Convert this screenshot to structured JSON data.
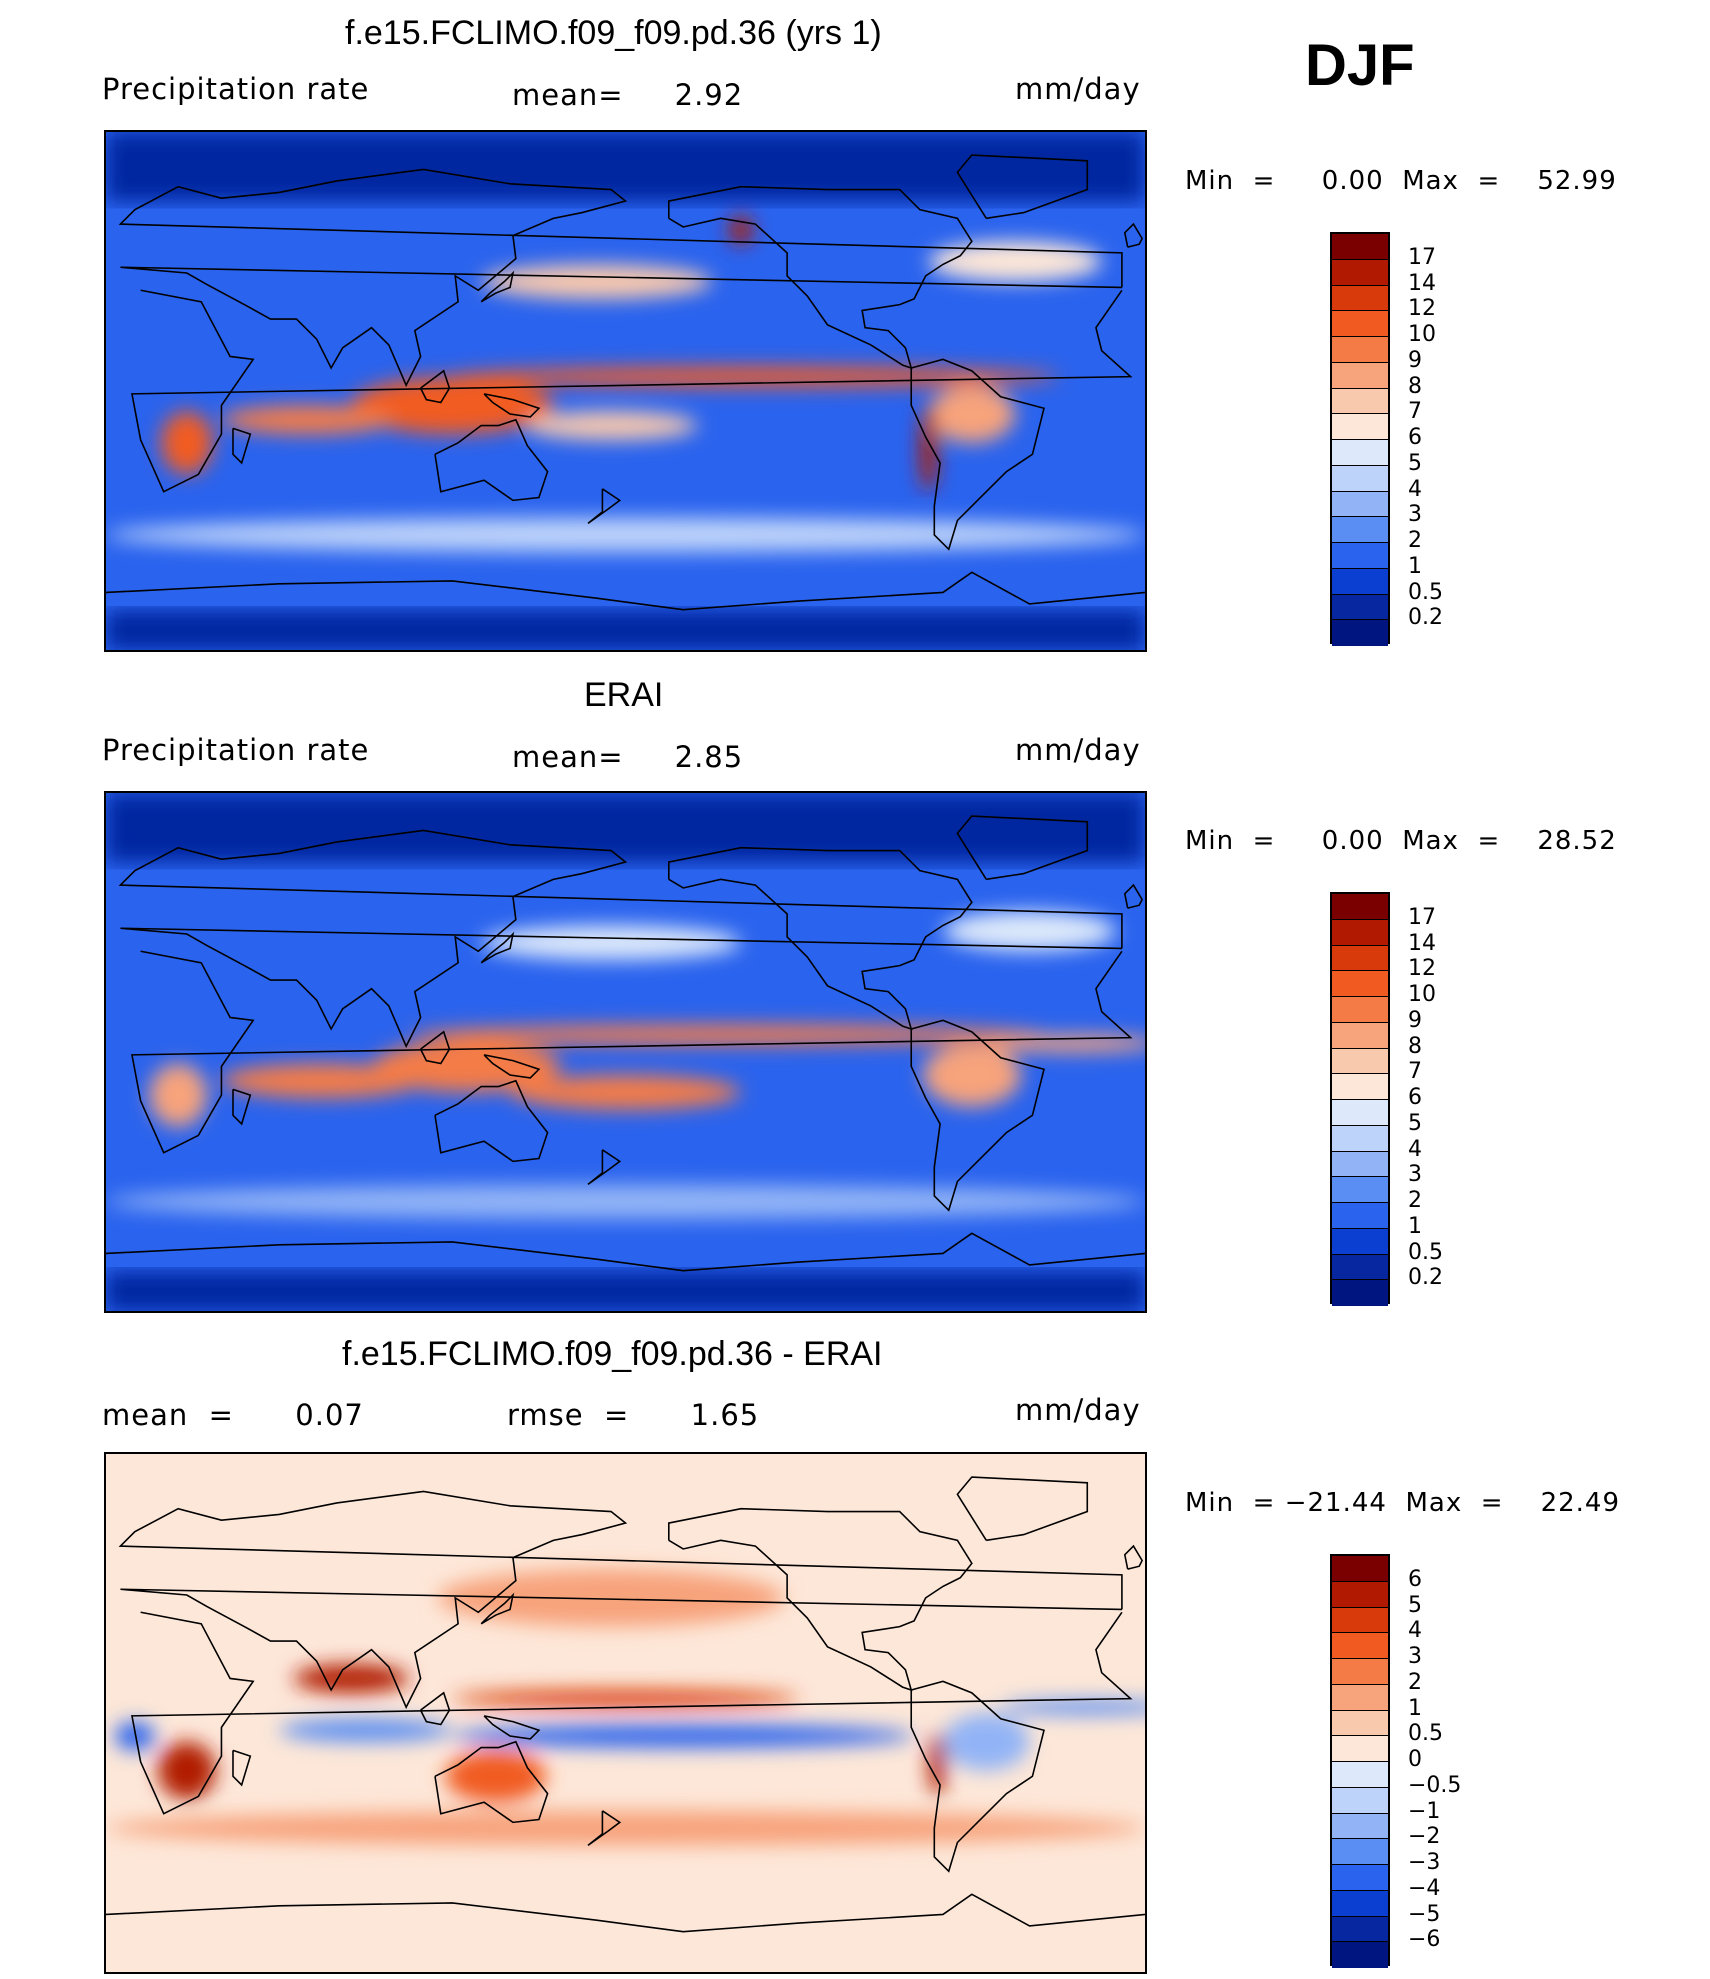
{
  "season": "DJF",
  "chart_data": [
    {
      "type": "heatmap",
      "title": "f.e15.FCLIMO.f09_f09.pd.36 (yrs 1)",
      "left_label": "Precipitation  rate",
      "center_label": "mean=     2.92",
      "units": "mm/day",
      "min_max": "Min  =     0.00  Max  =    52.99",
      "x_range": [
        0,
        360
      ],
      "y_range": [
        -90,
        90
      ],
      "levels": [
        "17",
        "14",
        "12",
        "10",
        "9",
        "8",
        "7",
        "6",
        "5",
        "4",
        "3",
        "2",
        "1",
        "0.5",
        "0.2"
      ],
      "colors": [
        "#7a0000",
        "#b11a00",
        "#d93a0c",
        "#f15b22",
        "#f47b46",
        "#f7a37c",
        "#f9c9ad",
        "#fde7d8",
        "#dde9fb",
        "#bdd3fa",
        "#92b4f6",
        "#5a8ef2",
        "#2a63ee",
        "#0b3fd1",
        "#0627a0",
        "#011580"
      ],
      "features": [
        {
          "name": "itcz-pacific",
          "x": 225,
          "y": 5,
          "w": 210,
          "h": 7,
          "val": 11
        },
        {
          "name": "warm-pool",
          "x": 120,
          "y": -5,
          "w": 70,
          "h": 20,
          "val": 10
        },
        {
          "name": "spcz",
          "x": 175,
          "y": -12,
          "w": 60,
          "h": 10,
          "val": 7
        },
        {
          "name": "indian-ocean",
          "x": 70,
          "y": -10,
          "w": 60,
          "h": 10,
          "val": 9
        },
        {
          "name": "southern-africa",
          "x": 28,
          "y": -18,
          "w": 18,
          "h": 22,
          "val": 10
        },
        {
          "name": "amazon",
          "x": 300,
          "y": -8,
          "w": 30,
          "h": 20,
          "val": 8
        },
        {
          "name": "andes",
          "x": 285,
          "y": -20,
          "w": 6,
          "h": 30,
          "val": 14
        },
        {
          "name": "north-pacific-storm",
          "x": 170,
          "y": 38,
          "w": 80,
          "h": 12,
          "val": 7
        },
        {
          "name": "north-atlantic-storm",
          "x": 315,
          "y": 45,
          "w": 60,
          "h": 14,
          "val": 6
        },
        {
          "name": "alaska-coast",
          "x": 220,
          "y": 56,
          "w": 8,
          "h": 10,
          "val": 14
        },
        {
          "name": "southern-ocean",
          "x": 180,
          "y": -50,
          "w": 360,
          "h": 12,
          "val": 4
        }
      ]
    },
    {
      "type": "heatmap",
      "title": "ERAI",
      "left_label": "Precipitation  rate",
      "center_label": "mean=     2.85",
      "units": "mm/day",
      "min_max": "Min  =     0.00  Max  =    28.52",
      "x_range": [
        0,
        360
      ],
      "y_range": [
        -90,
        90
      ],
      "levels": [
        "17",
        "14",
        "12",
        "10",
        "9",
        "8",
        "7",
        "6",
        "5",
        "4",
        "3",
        "2",
        "1",
        "0.5",
        "0.2"
      ],
      "colors": [
        "#7a0000",
        "#b11a00",
        "#d93a0c",
        "#f15b22",
        "#f47b46",
        "#f7a37c",
        "#f9c9ad",
        "#fde7d8",
        "#dde9fb",
        "#bdd3fa",
        "#92b4f6",
        "#5a8ef2",
        "#2a63ee",
        "#0b3fd1",
        "#0627a0",
        "#011580"
      ],
      "features": [
        {
          "name": "itcz-pacific",
          "x": 215,
          "y": 6,
          "w": 220,
          "h": 7,
          "val": 9
        },
        {
          "name": "warm-pool",
          "x": 125,
          "y": -5,
          "w": 65,
          "h": 18,
          "val": 9
        },
        {
          "name": "spcz",
          "x": 180,
          "y": -14,
          "w": 80,
          "h": 12,
          "val": 9
        },
        {
          "name": "indian-ocean",
          "x": 75,
          "y": -10,
          "w": 70,
          "h": 12,
          "val": 9
        },
        {
          "name": "southern-africa",
          "x": 25,
          "y": -15,
          "w": 20,
          "h": 22,
          "val": 8
        },
        {
          "name": "amazon",
          "x": 300,
          "y": -8,
          "w": 34,
          "h": 22,
          "val": 8
        },
        {
          "name": "atlantic-itcz",
          "x": 335,
          "y": 3,
          "w": 60,
          "h": 6,
          "val": 8
        },
        {
          "name": "north-pacific-storm",
          "x": 175,
          "y": 38,
          "w": 90,
          "h": 12,
          "val": 5
        },
        {
          "name": "north-atlantic-storm",
          "x": 320,
          "y": 42,
          "w": 60,
          "h": 14,
          "val": 5
        },
        {
          "name": "southern-ocean",
          "x": 180,
          "y": -52,
          "w": 360,
          "h": 12,
          "val": 3
        }
      ]
    },
    {
      "type": "heatmap",
      "title": "f.e15.FCLIMO.f09_f09.pd.36 - ERAI",
      "left_label": "mean  =      0.07",
      "center_label": "rmse  =      1.65",
      "units": "mm/day",
      "min_max": "Min  = −21.44  Max  =    22.49",
      "x_range": [
        0,
        360
      ],
      "y_range": [
        -90,
        90
      ],
      "levels": [
        "6",
        "5",
        "4",
        "3",
        "2",
        "1",
        "0.5",
        "0",
        "−0.5",
        "−1",
        "−2",
        "−3",
        "−4",
        "−5",
        "−6"
      ],
      "colors": [
        "#7a0000",
        "#b11a00",
        "#d93a0c",
        "#f15b22",
        "#f47b46",
        "#f7a37c",
        "#f9c9ad",
        "#fde7d8",
        "#dde9fb",
        "#bdd3fa",
        "#92b4f6",
        "#5a8ef2",
        "#2a63ee",
        "#0b3fd1",
        "#0627a0",
        "#011580"
      ],
      "features": [
        {
          "name": "warm-pool-diff",
          "x": 85,
          "y": 12,
          "w": 40,
          "h": 10,
          "val": 5
        },
        {
          "name": "pacific-itcz-diff",
          "x": 180,
          "y": 5,
          "w": 120,
          "h": 6,
          "val": 4
        },
        {
          "name": "pacific-south-diff",
          "x": 200,
          "y": -8,
          "w": 160,
          "h": 8,
          "val": -4
        },
        {
          "name": "indian-south-diff",
          "x": 90,
          "y": -6,
          "w": 60,
          "h": 8,
          "val": -3
        },
        {
          "name": "australia-diff",
          "x": 135,
          "y": -22,
          "w": 35,
          "h": 18,
          "val": 3
        },
        {
          "name": "southern-africa-diff",
          "x": 28,
          "y": -20,
          "w": 20,
          "h": 20,
          "val": 5
        },
        {
          "name": "africa-west-diff",
          "x": 10,
          "y": -8,
          "w": 14,
          "h": 10,
          "val": -4
        },
        {
          "name": "amazon-diff",
          "x": 305,
          "y": -10,
          "w": 30,
          "h": 20,
          "val": -2
        },
        {
          "name": "andes-diff",
          "x": 288,
          "y": -18,
          "w": 6,
          "h": 22,
          "val": 5
        },
        {
          "name": "atlantic-itcz-diff",
          "x": 340,
          "y": 2,
          "w": 60,
          "h": 5,
          "val": -3
        },
        {
          "name": "north-pacific-diff",
          "x": 175,
          "y": 40,
          "w": 120,
          "h": 20,
          "val": 1
        },
        {
          "name": "southern-ocean-diff",
          "x": 180,
          "y": -40,
          "w": 360,
          "h": 12,
          "val": 1
        }
      ]
    }
  ]
}
